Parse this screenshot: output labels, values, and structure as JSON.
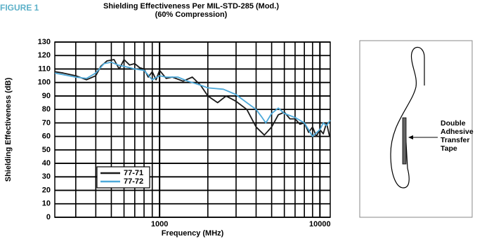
{
  "figure_label": "FIGURE 1",
  "chart_data": {
    "type": "line",
    "title": "Shielding Effectiveness Per MIL-STD-285 (Mod.)",
    "subtitle": "(60% Compression)",
    "x_label": "Frequency (MHz)",
    "y_label": "Shielding Effectiveness (dB)",
    "x_scale": "log",
    "xlim": [
      222,
      11600
    ],
    "xticks": [
      1000,
      10000
    ],
    "ylim": [
      0,
      130
    ],
    "yticks": [
      0,
      10,
      20,
      30,
      40,
      50,
      60,
      70,
      80,
      90,
      100,
      110,
      120,
      130
    ],
    "grid": true,
    "legend": "lower-left",
    "series": [
      {
        "name": "77-71",
        "color": "#1a1a1a",
        "x": [
          222,
          250,
          300,
          350,
          400,
          430,
          470,
          520,
          560,
          600,
          650,
          700,
          750,
          800,
          850,
          900,
          950,
          1000,
          1100,
          1200,
          1400,
          1600,
          1800,
          2000,
          2300,
          2600,
          3000,
          3500,
          4000,
          4500,
          5000,
          5500,
          6000,
          6500,
          7000,
          7500,
          8000,
          8500,
          9000,
          9500,
          10000,
          10500,
          11000,
          11500
        ],
        "values": [
          108,
          107,
          105,
          102,
          105,
          112,
          116,
          117,
          110,
          117,
          113,
          114,
          111,
          110,
          104,
          108,
          102,
          109,
          103,
          104,
          101,
          104,
          98,
          90,
          85,
          90,
          86,
          80,
          67,
          61,
          67,
          76,
          78,
          73,
          73,
          69,
          70,
          63,
          67,
          60,
          65,
          62,
          70,
          60
        ]
      },
      {
        "name": "77-72",
        "color": "#4ea9d9",
        "x": [
          222,
          300,
          350,
          400,
          450,
          500,
          550,
          600,
          650,
          700,
          800,
          900,
          1000,
          1100,
          1300,
          1500,
          1800,
          2000,
          2500,
          3000,
          3500,
          4000,
          4300,
          4600,
          5000,
          5500,
          6000,
          7000,
          8000,
          9000,
          10000,
          10500,
          11000,
          11600
        ],
        "values": [
          107,
          104,
          103,
          107,
          114,
          115,
          113,
          112,
          111,
          110,
          109,
          102,
          105,
          104,
          104,
          101,
          98,
          96,
          95,
          91,
          85,
          80,
          75,
          70,
          77,
          81,
          77,
          74,
          70,
          60,
          65,
          70,
          68,
          72
        ]
      }
    ]
  },
  "diagram": {
    "label_lines": [
      "Double",
      "Adhesive",
      "Transfer",
      "Tape"
    ]
  }
}
